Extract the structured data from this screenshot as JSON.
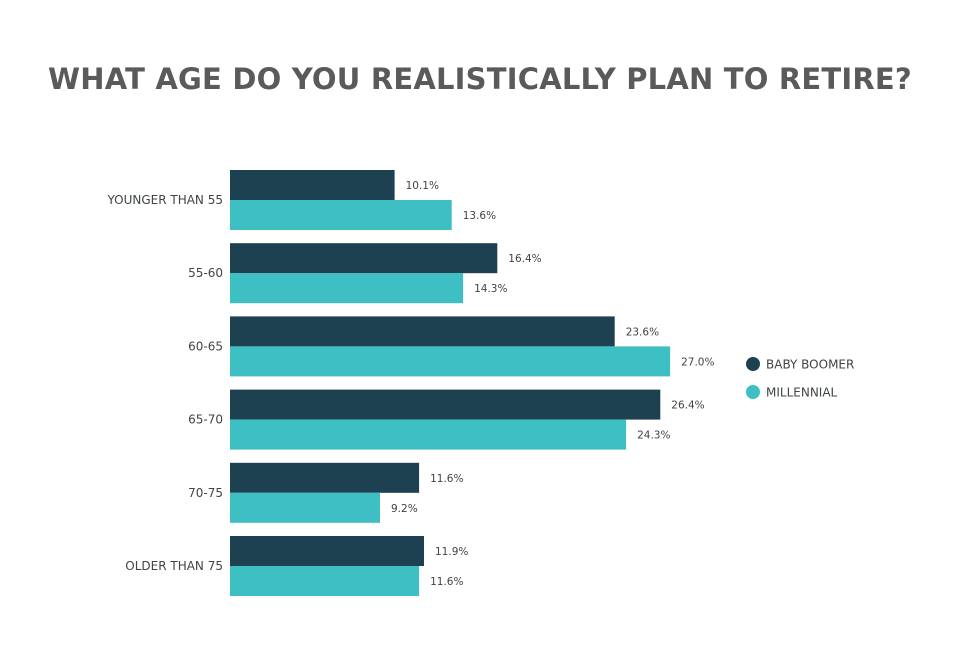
{
  "chart_data": {
    "type": "bar",
    "orientation": "horizontal",
    "title": "WHAT AGE DO YOU REALISTICALLY PLAN TO RETIRE?",
    "categories": [
      "YOUNGER THAN 55",
      "55-60",
      "60-65",
      "65-70",
      "70-75",
      "OLDER THAN 75"
    ],
    "series": [
      {
        "name": "BABY BOOMER",
        "color": "#1e4152",
        "values": [
          10.1,
          16.4,
          23.6,
          26.4,
          11.6,
          11.9
        ],
        "labels": [
          "10.1%",
          "16.4%",
          "23.6%",
          "26.4%",
          "11.6%",
          "11.9%"
        ]
      },
      {
        "name": "MILLENNIAL",
        "color": "#3ebfc4",
        "values": [
          13.6,
          14.3,
          27.0,
          24.3,
          9.2,
          11.6
        ],
        "labels": [
          "13.6%",
          "14.3%",
          "27.0%",
          "24.3%",
          "9.2%",
          "11.6%"
        ]
      }
    ],
    "xlim": [
      0,
      30
    ],
    "grid": false,
    "legend_position": "right"
  }
}
